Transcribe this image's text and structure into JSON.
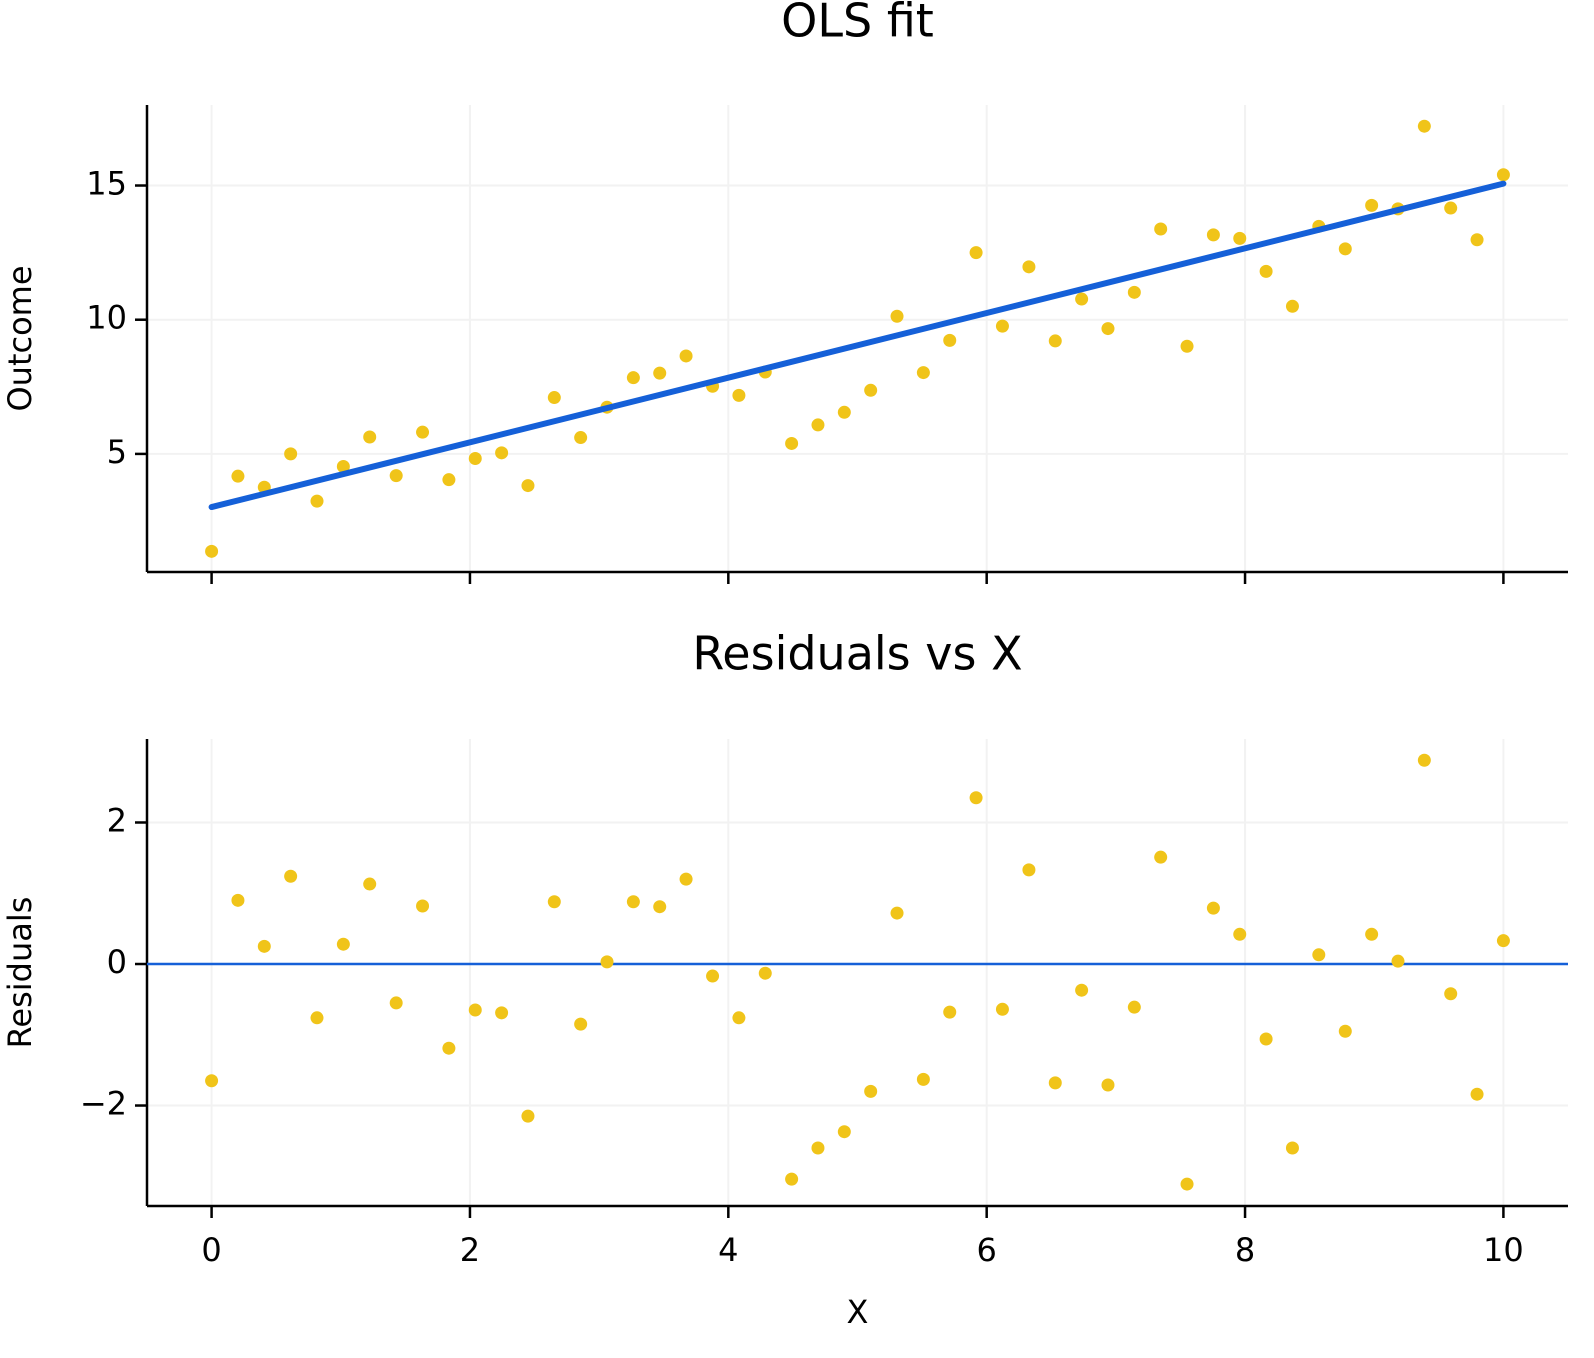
{
  "chart_data": [
    {
      "type": "scatter",
      "title": "OLS fit",
      "ylabel": "Outcome",
      "x": [
        0,
        0.204,
        0.408,
        0.612,
        0.816,
        1.02,
        1.224,
        1.429,
        1.633,
        1.837,
        2.041,
        2.245,
        2.449,
        2.653,
        2.857,
        3.061,
        3.265,
        3.469,
        3.673,
        3.878,
        4.082,
        4.286,
        4.49,
        4.694,
        4.898,
        5.102,
        5.306,
        5.51,
        5.714,
        5.918,
        6.122,
        6.327,
        6.531,
        6.735,
        6.939,
        7.143,
        7.347,
        7.551,
        7.755,
        7.959,
        8.163,
        8.367,
        8.571,
        8.776,
        8.98,
        9.184,
        9.388,
        9.592,
        9.796,
        10
      ],
      "series": [
        {
          "color": "#f0c419",
          "values": [
            1.37,
            4.17,
            3.76,
            5.0,
            3.24,
            4.53,
            5.63,
            4.19,
            5.81,
            4.04,
            4.83,
            5.04,
            3.82,
            7.1,
            5.61,
            6.74,
            7.84,
            8.01,
            8.65,
            7.52,
            7.18,
            8.05,
            5.39,
            6.08,
            6.55,
            7.37,
            10.13,
            8.03,
            9.23,
            12.5,
            9.76,
            11.97,
            9.21,
            10.77,
            9.67,
            11.02,
            13.38,
            9.01,
            13.16,
            13.03,
            11.8,
            10.5,
            13.48,
            12.64,
            14.26,
            14.13,
            17.21,
            14.16,
            12.98,
            15.4
          ]
        },
        {
          "color": "#1560d8",
          "mode": "line",
          "x": [
            0,
            10
          ],
          "values": [
            3.02,
            15.07
          ]
        }
      ],
      "xlim": [
        -0.5,
        10.5
      ],
      "xticks": [
        0,
        2,
        4,
        6,
        8,
        10
      ],
      "xticklabels": false,
      "ylim": [
        0.6,
        18.0
      ],
      "yticks": [
        5,
        10,
        15
      ],
      "grid": true
    },
    {
      "type": "scatter",
      "title": "Residuals vs X",
      "xlabel": "X",
      "ylabel": "Residuals",
      "x": [
        0,
        0.204,
        0.408,
        0.612,
        0.816,
        1.02,
        1.224,
        1.429,
        1.633,
        1.837,
        2.041,
        2.245,
        2.449,
        2.653,
        2.857,
        3.061,
        3.265,
        3.469,
        3.673,
        3.878,
        4.082,
        4.286,
        4.49,
        4.694,
        4.898,
        5.102,
        5.306,
        5.51,
        5.714,
        5.918,
        6.122,
        6.327,
        6.531,
        6.735,
        6.939,
        7.143,
        7.347,
        7.551,
        7.755,
        7.959,
        8.163,
        8.367,
        8.571,
        8.776,
        8.98,
        9.184,
        9.388,
        9.592,
        9.796,
        10
      ],
      "series": [
        {
          "color": "#f0c419",
          "values": [
            -1.65,
            0.9,
            0.25,
            1.24,
            -0.76,
            0.28,
            1.13,
            -0.55,
            0.82,
            -1.19,
            -0.65,
            -0.69,
            -2.15,
            0.88,
            -0.85,
            0.03,
            0.88,
            0.81,
            1.2,
            -0.17,
            -0.76,
            -0.13,
            -3.04,
            -2.6,
            -2.37,
            -1.8,
            0.72,
            -1.63,
            -0.68,
            2.35,
            -0.64,
            1.33,
            -1.68,
            -0.37,
            -1.71,
            -0.61,
            1.51,
            -3.11,
            0.79,
            0.42,
            -1.06,
            -2.6,
            0.13,
            -0.95,
            0.42,
            0.04,
            2.88,
            -0.42,
            -1.84,
            0.33
          ]
        }
      ],
      "hline": 0,
      "hline_color": "#1560d8",
      "xlim": [
        -0.5,
        10.5
      ],
      "xticks": [
        0,
        2,
        4,
        6,
        8,
        10
      ],
      "xticklabels": true,
      "ylim": [
        -3.42,
        3.18
      ],
      "yticks": [
        {
          "value": -2,
          "label": "−2"
        },
        0,
        2
      ],
      "grid": true
    }
  ]
}
